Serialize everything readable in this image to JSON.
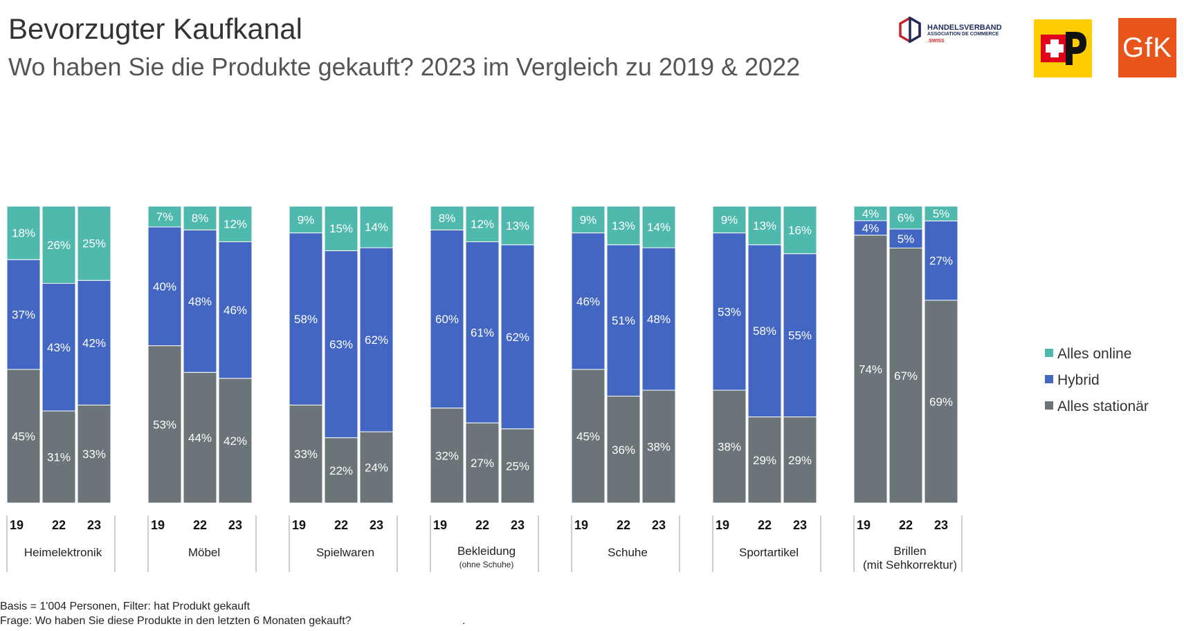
{
  "header": {
    "title": "Bevorzugter Kaufkanal",
    "subtitle": "Wo haben Sie die Produkte gekauft? 2023 im Vergleich zu 2019 & 2022"
  },
  "logos": {
    "handelsverband": {
      "line1": "HANDELSVERBAND",
      "line2": "ASSOCIATION DE COMMERCE",
      "line3": ".SWISS"
    },
    "post": {
      "name": "Die Post",
      "color": "#ffcc00"
    },
    "gfk": {
      "text": "GfK",
      "color": "#e8541a"
    }
  },
  "chart_data": {
    "type": "bar",
    "stacked": true,
    "normalized": true,
    "years": [
      "19",
      "22",
      "23"
    ],
    "legend_position": "right",
    "colors": {
      "online": "#4fb9ad",
      "hybrid": "#4266c1",
      "stationaer": "#6b7478"
    },
    "legend": [
      {
        "key": "online",
        "label": "Alles online"
      },
      {
        "key": "hybrid",
        "label": "Hybrid"
      },
      {
        "key": "stationaer",
        "label": "Alles stationär"
      }
    ],
    "groups": [
      {
        "category": "Heimelektronik",
        "sublabel": "",
        "bars": [
          {
            "year": "19",
            "stationaer": 45,
            "hybrid": 37,
            "online": 18
          },
          {
            "year": "22",
            "stationaer": 31,
            "hybrid": 43,
            "online": 26
          },
          {
            "year": "23",
            "stationaer": 33,
            "hybrid": 42,
            "online": 25
          }
        ]
      },
      {
        "category": "Möbel",
        "sublabel": "",
        "bars": [
          {
            "year": "19",
            "stationaer": 53,
            "hybrid": 40,
            "online": 7
          },
          {
            "year": "22",
            "stationaer": 44,
            "hybrid": 48,
            "online": 8
          },
          {
            "year": "23",
            "stationaer": 42,
            "hybrid": 46,
            "online": 12
          }
        ]
      },
      {
        "category": "Spielwaren",
        "sublabel": "",
        "bars": [
          {
            "year": "19",
            "stationaer": 33,
            "hybrid": 58,
            "online": 9
          },
          {
            "year": "22",
            "stationaer": 22,
            "hybrid": 63,
            "online": 15
          },
          {
            "year": "23",
            "stationaer": 24,
            "hybrid": 62,
            "online": 14
          }
        ]
      },
      {
        "category": "Bekleidung",
        "sublabel": "(ohne Schuhe)",
        "bars": [
          {
            "year": "19",
            "stationaer": 32,
            "hybrid": 60,
            "online": 8
          },
          {
            "year": "22",
            "stationaer": 27,
            "hybrid": 61,
            "online": 12
          },
          {
            "year": "23",
            "stationaer": 25,
            "hybrid": 62,
            "online": 13
          }
        ]
      },
      {
        "category": "Schuhe",
        "sublabel": "",
        "bars": [
          {
            "year": "19",
            "stationaer": 45,
            "hybrid": 46,
            "online": 9
          },
          {
            "year": "22",
            "stationaer": 36,
            "hybrid": 51,
            "online": 13
          },
          {
            "year": "23",
            "stationaer": 38,
            "hybrid": 48,
            "online": 14
          }
        ]
      },
      {
        "category": "Sportartikel",
        "sublabel": "",
        "bars": [
          {
            "year": "19",
            "stationaer": 38,
            "hybrid": 53,
            "online": 9
          },
          {
            "year": "22",
            "stationaer": 29,
            "hybrid": 58,
            "online": 13
          },
          {
            "year": "23",
            "stationaer": 29,
            "hybrid": 55,
            "online": 16
          }
        ]
      },
      {
        "category": "Brillen",
        "sublabel": "(mit Sehkorrektur)",
        "bars": [
          {
            "year": "19",
            "stationaer": 74,
            "hybrid": 4,
            "online": 4
          },
          {
            "year": "22",
            "stationaer": 67,
            "hybrid": 5,
            "online": 6
          },
          {
            "year": "23",
            "stationaer": 69,
            "hybrid": 27,
            "online": 5
          }
        ]
      }
    ]
  },
  "footer": {
    "basis": "Basis = 1'004 Personen, Filter: hat Produkt gekauft",
    "frage": "Frage: Wo haben Sie diese Produkte in den letzten 6 Monaten gekauft?",
    "dot": "."
  }
}
